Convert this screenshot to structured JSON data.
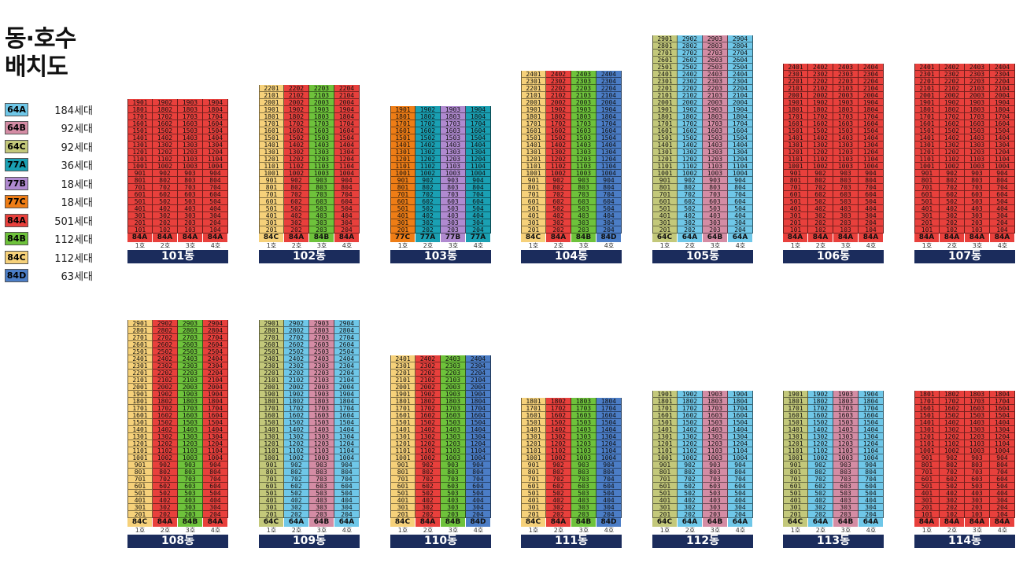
{
  "title": [
    "동·호수",
    "배치도"
  ],
  "legend": [
    {
      "type": "64A",
      "count": "184세대",
      "color": "#6fc7e8"
    },
    {
      "type": "64B",
      "count": "92세대",
      "color": "#d48ca4"
    },
    {
      "type": "64C",
      "count": "92세대",
      "color": "#c3c87a"
    },
    {
      "type": "77A",
      "count": "36세대",
      "color": "#1aa0b3"
    },
    {
      "type": "77B",
      "count": "18세대",
      "color": "#b08ad0"
    },
    {
      "type": "77C",
      "count": "18세대",
      "color": "#ee7d16"
    },
    {
      "type": "84A",
      "count": "501세대",
      "color": "#e8403c"
    },
    {
      "type": "84B",
      "count": "112세대",
      "color": "#6ec23b"
    },
    {
      "type": "84C",
      "count": "112세대",
      "color": "#f6d17a"
    },
    {
      "type": "84D",
      "count": "63세대",
      "color": "#4b7dc6"
    }
  ],
  "lines": [
    "1호",
    "2호",
    "3호",
    "4호"
  ],
  "buildings": [
    {
      "name": "101동",
      "types": [
        "84A",
        "84A",
        "84A",
        "84A"
      ],
      "top": [
        19,
        19,
        19,
        19
      ],
      "bottom": [
        1,
        1,
        1,
        1
      ]
    },
    {
      "name": "102동",
      "types": [
        "84C",
        "84A",
        "84B",
        "84A"
      ],
      "top": [
        22,
        22,
        22,
        22
      ],
      "bottom": [
        2,
        2,
        2,
        2
      ]
    },
    {
      "name": "103동",
      "types": [
        "77C",
        "77A",
        "77B",
        "77A"
      ],
      "top": [
        19,
        19,
        19,
        19
      ],
      "bottom": [
        2,
        2,
        2,
        2
      ]
    },
    {
      "name": "104동",
      "types": [
        "84C",
        "84A",
        "84B",
        "84D"
      ],
      "top": [
        24,
        24,
        24,
        24
      ],
      "bottom": [
        2,
        2,
        2,
        2
      ]
    },
    {
      "name": "105동",
      "types": [
        "64C",
        "64A",
        "64B",
        "64A"
      ],
      "top": [
        29,
        29,
        29,
        29
      ],
      "bottom": [
        2,
        2,
        2,
        2
      ]
    },
    {
      "name": "106동",
      "types": [
        "84A",
        "84A",
        "84A",
        "84A"
      ],
      "top": [
        24,
        24,
        24,
        24
      ],
      "bottom": [
        1,
        1,
        1,
        1
      ]
    },
    {
      "name": "107동",
      "types": [
        "84A",
        "84A",
        "84A",
        "84A"
      ],
      "top": [
        24,
        24,
        24,
        24
      ],
      "bottom": [
        1,
        1,
        1,
        1
      ]
    },
    {
      "name": "108동",
      "types": [
        "84C",
        "84A",
        "84B",
        "84A"
      ],
      "top": [
        29,
        29,
        29,
        29
      ],
      "bottom": [
        2,
        2,
        2,
        2
      ]
    },
    {
      "name": "109동",
      "types": [
        "64C",
        "64A",
        "64B",
        "64A"
      ],
      "top": [
        29,
        29,
        29,
        29
      ],
      "bottom": [
        2,
        2,
        2,
        2
      ]
    },
    {
      "name": "110동",
      "types": [
        "84C",
        "84A",
        "84B",
        "84D"
      ],
      "top": [
        24,
        24,
        24,
        24
      ],
      "bottom": [
        2,
        2,
        2,
        2
      ]
    },
    {
      "name": "111동",
      "types": [
        "84C",
        "84A",
        "84B",
        "84D"
      ],
      "top": [
        18,
        18,
        18,
        18
      ],
      "bottom": [
        2,
        2,
        2,
        2
      ]
    },
    {
      "name": "112동",
      "types": [
        "64C",
        "64A",
        "64B",
        "64A"
      ],
      "top": [
        19,
        19,
        19,
        19
      ],
      "bottom": [
        2,
        2,
        2,
        2
      ]
    },
    {
      "name": "113동",
      "types": [
        "64C",
        "64A",
        "64B",
        "64A"
      ],
      "top": [
        19,
        19,
        19,
        19
      ],
      "bottom": [
        2,
        2,
        2,
        2
      ]
    },
    {
      "name": "114동",
      "types": [
        "84A",
        "84A",
        "84A",
        "84A"
      ],
      "top": [
        18,
        18,
        18,
        18
      ],
      "bottom": [
        1,
        1,
        1,
        1
      ]
    }
  ]
}
